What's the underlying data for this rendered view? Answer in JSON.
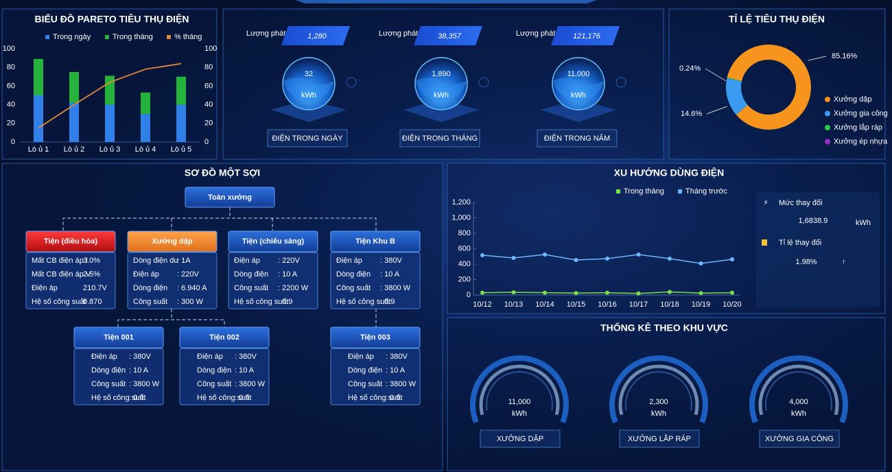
{
  "chart_data": [
    {
      "type": "bar",
      "title": "BIỂU ĐỒ PARETO TIÊU THỤ ĐIỆN",
      "categories": [
        "Lò ủ 1",
        "Lò ủ 2",
        "Lò ủ 3",
        "Lò ủ 4",
        "Lò ủ 5"
      ],
      "series": [
        {
          "name": "Trong ngày",
          "color": "#2f80e8",
          "values": [
            50,
            42,
            40,
            30,
            40
          ]
        },
        {
          "name": "Trong tháng",
          "color": "#25b33b",
          "values": [
            39,
            33,
            31,
            23,
            30
          ]
        },
        {
          "name": "% tháng",
          "color": "#e0893a",
          "axis": "y2",
          "values": [
            15,
            40,
            64,
            78,
            84
          ]
        }
      ],
      "stacked": true,
      "ylim": [
        0,
        100
      ],
      "yticks": [
        0,
        20,
        40,
        60,
        80,
        100
      ],
      "y2lim": [
        0,
        100
      ],
      "y2ticks": [
        0,
        20,
        40,
        60,
        80,
        100
      ]
    },
    {
      "type": "pie",
      "title": "TỈ LỆ TIÊU THỤ ĐIỆN",
      "donut": true,
      "categories": [
        "Xưởng dập",
        "Xưởng gia công",
        "Xưởng lắp ráp",
        "Xưởng ép nhựa"
      ],
      "values": [
        85.16,
        14.6,
        0.24,
        0
      ],
      "value_labels": [
        "85.16%",
        "14.6%",
        "0.24%",
        null
      ],
      "colors": [
        "#f7941d",
        "#3a9bf0",
        "#2ec84a",
        "#9b2fc9"
      ],
      "legend": "right"
    },
    {
      "type": "line",
      "title": "XU HƯỚNG DÙNG ĐIỆN",
      "categories": [
        "10/12",
        "10/13",
        "10/14",
        "10/15",
        "10/16",
        "10/17",
        "10/18",
        "10/19",
        "10/20"
      ],
      "series": [
        {
          "name": "Trong tháng",
          "color": "#7ee04a",
          "values": [
            30,
            35,
            30,
            25,
            30,
            20,
            40,
            25,
            30
          ]
        },
        {
          "name": "Tháng trước",
          "color": "#6fb8ff",
          "values": [
            516,
            480,
            524,
            453,
            471,
            524,
            471,
            409,
            462
          ]
        }
      ],
      "ylim": [
        0,
        1200
      ],
      "yticks": [
        0,
        200,
        400,
        600,
        800,
        {
          "value": 1000,
          "label": "1,000"
        },
        {
          "value": 1200,
          "label": "1,200"
        }
      ]
    }
  ],
  "kpis": {
    "items": [
      {
        "caption": "Lượng phát thải",
        "emission": "1,280",
        "value": "32",
        "unit": "kWh",
        "label": "ĐIỆN TRONG NGÀY"
      },
      {
        "caption": "Lượng phát thải",
        "emission": "38,357",
        "value": "1,890",
        "unit": "kWh",
        "label": "ĐIỆN TRONG THÁNG"
      },
      {
        "caption": "Lượng phát thải",
        "emission": "121,176",
        "value": "11,000",
        "unit": "kWh",
        "label": "ĐIỆN TRONG NĂM"
      }
    ]
  },
  "trend_summary": {
    "change_label": "Mức thay đổi",
    "change_value": "1,6838.9",
    "change_unit": "kWh",
    "rate_label": "Tỉ lệ thay đổi",
    "rate_value": "1.98%",
    "rate_arrow": "↑"
  },
  "single_line": {
    "title": "SƠ ĐỒ MỘT SỢI",
    "root": "Toàn xưởng",
    "nodes": [
      {
        "label": "Tiện (điều hòa)",
        "rows": [
          [
            "Mất CB điện áp I",
            "3.0%"
          ],
          [
            "Mất CB điện áp V",
            "2.5%"
          ],
          [
            "Điện áp",
            "210.7V"
          ],
          [
            "Hệ số công suất",
            "0.870"
          ]
        ]
      },
      {
        "label": "Xưởng dập",
        "rows": [
          [
            "Dòng điện dư",
            ": 1A"
          ],
          [
            "Điện áp",
            ": 220V"
          ],
          [
            "Dòng điện",
            ": 6.940 A"
          ],
          [
            "Công suất",
            ": 300 W"
          ]
        ]
      },
      {
        "label": "Tiện (chiếu sáng)",
        "rows": [
          [
            "Điện áp",
            ": 220V"
          ],
          [
            "Dòng điện",
            ": 10 A"
          ],
          [
            "Công suất",
            ": 2200 W"
          ],
          [
            "Hệ số công suất",
            ": 0.9"
          ]
        ]
      },
      {
        "label": "Tiện Khu B",
        "rows": [
          [
            "Điện áp",
            ": 380V"
          ],
          [
            "Dòng điện",
            ": 10 A"
          ],
          [
            "Công suất",
            ": 3800 W"
          ],
          [
            "Hệ số công suất",
            ": 0.9"
          ]
        ]
      }
    ],
    "children": [
      {
        "label": "Tiện 001",
        "rows": [
          [
            "Điện áp",
            ": 380V"
          ],
          [
            "Dòng điện",
            ": 10 A"
          ],
          [
            "Công suất",
            ": 3800 W"
          ],
          [
            "Hệ số công suất",
            ": 0.9"
          ]
        ]
      },
      {
        "label": "Tiện 002",
        "rows": [
          [
            "Điện áp",
            ": 380V"
          ],
          [
            "Dòng điện",
            ": 10 A"
          ],
          [
            "Công suất",
            ": 3800 W"
          ],
          [
            "Hệ số công suất",
            ": 0.9"
          ]
        ]
      },
      {
        "label": "Tiện 003",
        "rows": [
          [
            "Điện áp",
            ": 380V"
          ],
          [
            "Dòng điện",
            ": 10 A"
          ],
          [
            "Công suất",
            ": 3800 W"
          ],
          [
            "Hệ số công suất",
            ": 0.9"
          ]
        ]
      }
    ]
  },
  "regions": {
    "title": "THỐNG KÊ THEO KHU VỰC",
    "items": [
      {
        "value": "11,000",
        "unit": "kWh",
        "label": "XƯỞNG DẬP"
      },
      {
        "value": "2,300",
        "unit": "kWh",
        "label": "XƯỞNG LẮP RÁP"
      },
      {
        "value": "4,000",
        "unit": "kWh",
        "label": "XƯỞNG GIA CÔNG"
      }
    ]
  }
}
